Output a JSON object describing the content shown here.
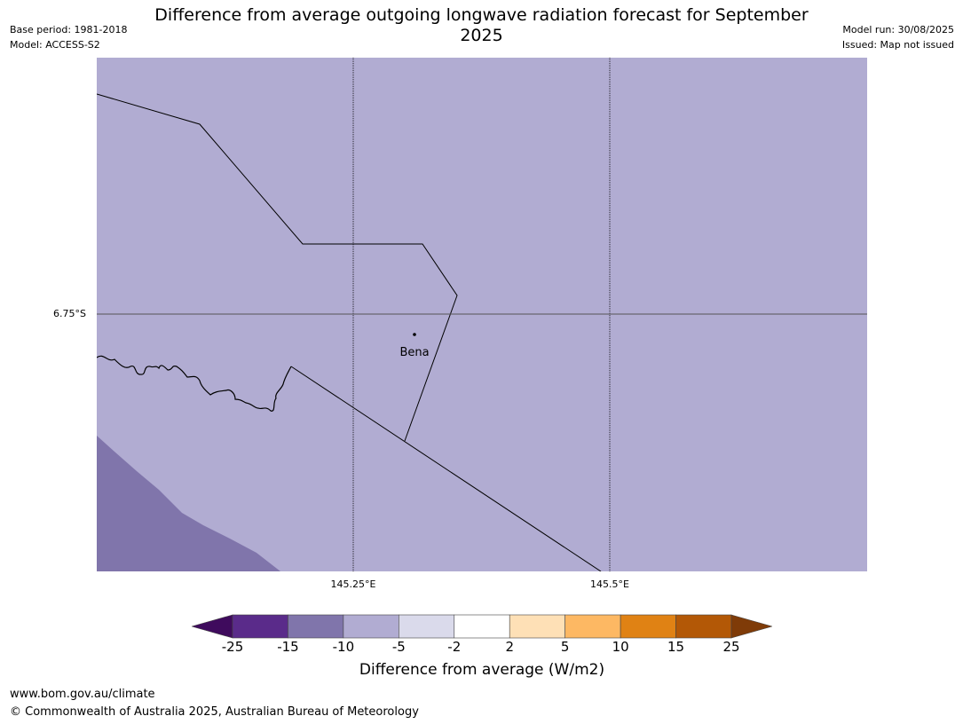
{
  "header": {
    "title": "Difference from average outgoing longwave radiation forecast for September 2025",
    "base_period": "Base period: 1981-2018",
    "model": "Model: ACCESS-S2",
    "model_run": "Model run: 30/08/2025",
    "issued": "Issued: Map not issued"
  },
  "map": {
    "background_color": "#b1acd2",
    "anomaly_color": "#8075ab",
    "boundary_color": "#000000",
    "place": {
      "name": "Bena"
    },
    "lat_label": "6.75°S",
    "lon_labels": [
      "145.25°E",
      "145.5°E"
    ]
  },
  "colorbar": {
    "title": "Difference from average (W/m2)",
    "bins": [
      {
        "from": "-inf",
        "to": -25,
        "color": "#3f0b5d"
      },
      {
        "from": -25,
        "to": -15,
        "color": "#5a2b8a"
      },
      {
        "from": -15,
        "to": -10,
        "color": "#8075ab"
      },
      {
        "from": -10,
        "to": -5,
        "color": "#b1acd2"
      },
      {
        "from": -5,
        "to": -2,
        "color": "#dadaeb"
      },
      {
        "from": -2,
        "to": 2,
        "color": "#ffffff"
      },
      {
        "from": 2,
        "to": 5,
        "color": "#fee0b6"
      },
      {
        "from": 5,
        "to": 10,
        "color": "#fdb863"
      },
      {
        "from": 10,
        "to": 15,
        "color": "#e08214"
      },
      {
        "from": 15,
        "to": 25,
        "color": "#b35806"
      },
      {
        "from": 25,
        "to": "inf",
        "color": "#7f3b08"
      }
    ],
    "labels": [
      "-25",
      "-15",
      "-10",
      "-5",
      "-2",
      "2",
      "5",
      "10",
      "15",
      "25"
    ]
  },
  "footer": {
    "url": "www.bom.gov.au/climate",
    "copyright": "© Commonwealth of Australia 2025, Australian Bureau of Meteorology"
  }
}
